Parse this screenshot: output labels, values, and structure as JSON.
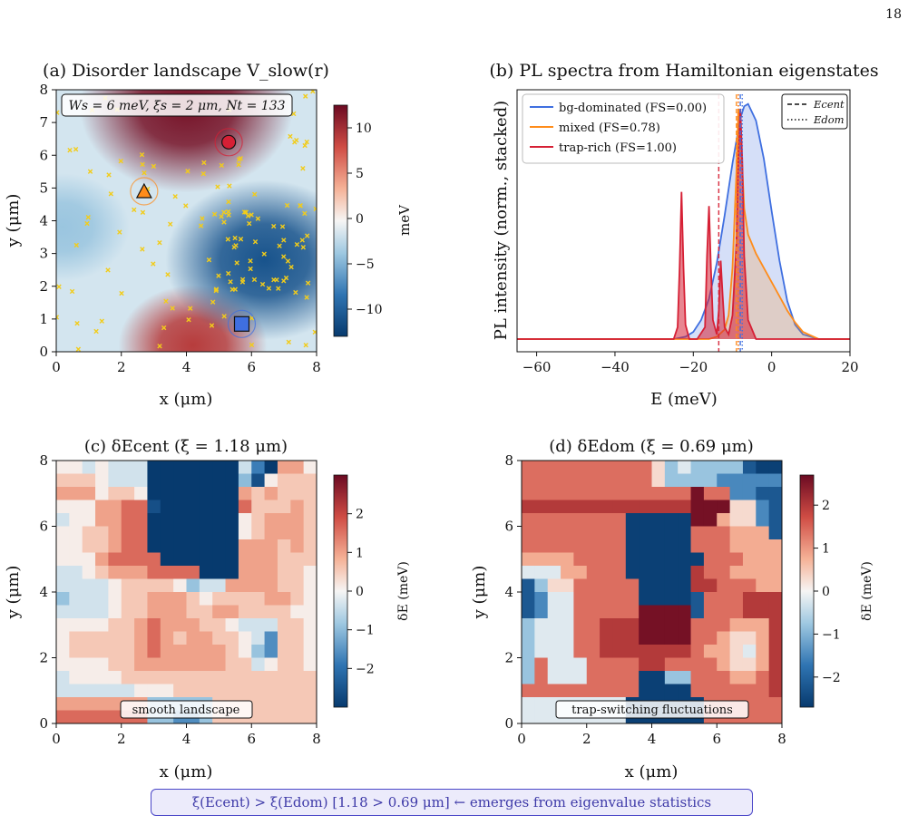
{
  "page_number": "18",
  "conclusion": "ξ(Ecent) > ξ(Edom)  [1.18 > 0.69 μm]  ←  emerges from eigenvalue statistics",
  "chart_data": [
    {
      "id": "a",
      "type": "heatmap",
      "title": "(a) Disorder landscape V_slow(r)",
      "xlabel": "x (μm)",
      "ylabel": "y (μm)",
      "xlim": [
        0,
        8
      ],
      "ylim": [
        0,
        8
      ],
      "xticks": [
        "0",
        "2",
        "4",
        "6",
        "8"
      ],
      "yticks": [
        "0",
        "1",
        "2",
        "3",
        "4",
        "5",
        "6",
        "7",
        "8"
      ],
      "colorbar": {
        "label": "meV",
        "range": [
          -13,
          12.5
        ],
        "ticks": [
          "10",
          "5",
          "0",
          "−5",
          "−10"
        ],
        "tick_values": [
          10,
          5,
          0,
          -5,
          -10
        ],
        "colormap": "RdBu_r"
      },
      "info_box": "Ws = 6 meV, ξs = 2 μm, Nt = 133",
      "landscape_features": [
        {
          "kind": "maximum",
          "x": 4.0,
          "y": 7.5,
          "value_meV": 12
        },
        {
          "kind": "maximum",
          "x": 4.2,
          "y": 0.2,
          "value_meV": 9
        },
        {
          "kind": "minimum",
          "x": 6.4,
          "y": 2.8,
          "value_meV": -11
        },
        {
          "kind": "minimum",
          "x": 0.2,
          "y": 3.8,
          "value_meV": -4
        }
      ],
      "trap_count": 133,
      "markers": [
        {
          "shape": "circle",
          "x": 5.3,
          "y": 6.4,
          "color": "#d62035",
          "name": "trap-rich"
        },
        {
          "shape": "triangle",
          "x": 2.7,
          "y": 4.9,
          "color": "#ff8c1a",
          "name": "mixed"
        },
        {
          "shape": "square",
          "x": 5.7,
          "y": 0.85,
          "color": "#3f6fe0",
          "name": "bg-dominated"
        }
      ]
    },
    {
      "id": "b",
      "type": "line",
      "title": "(b) PL spectra from Hamiltonian eigenstates",
      "xlabel": "E (meV)",
      "ylabel": "PL intensity (norm., stacked)",
      "xlim": [
        -65,
        20
      ],
      "ylim": [
        0,
        1.08
      ],
      "xticks": [
        "−60",
        "−40",
        "−20",
        "0",
        "20"
      ],
      "xtick_values": [
        -60,
        -40,
        -20,
        0,
        20
      ],
      "legend": {
        "placement": "top-left",
        "entries": [
          "bg-dominated (FS=0.00)",
          "mixed (FS=0.78)",
          "trap-rich (FS=1.00)"
        ]
      },
      "legend2": {
        "placement": "top-right",
        "entries": [
          "Ecent",
          "Edom"
        ]
      },
      "series": [
        {
          "name": "bg-dominated (FS=0.00)",
          "color": "#3f6fe0",
          "x": [
            -65,
            -25,
            -22,
            -20,
            -18,
            -16,
            -14,
            -12,
            -10,
            -8,
            -7,
            -6,
            -4,
            -2,
            0,
            2,
            4,
            6,
            8,
            12,
            20
          ],
          "y": [
            0,
            0,
            0.01,
            0.03,
            0.08,
            0.17,
            0.32,
            0.52,
            0.74,
            0.93,
            0.98,
            0.99,
            0.92,
            0.76,
            0.54,
            0.33,
            0.16,
            0.06,
            0.02,
            0,
            0
          ]
        },
        {
          "name": "mixed (FS=0.78)",
          "color": "#ff8c1a",
          "x": [
            -65,
            -16,
            -14,
            -12,
            -11,
            -10,
            -9,
            -8.5,
            -8,
            -7.5,
            -7,
            -6,
            -4,
            -2,
            0,
            2,
            4,
            6,
            8,
            12,
            20
          ],
          "y": [
            0,
            0,
            0.01,
            0.04,
            0.1,
            0.3,
            0.7,
            0.97,
            0.9,
            0.72,
            0.55,
            0.44,
            0.36,
            0.3,
            0.24,
            0.18,
            0.12,
            0.07,
            0.03,
            0,
            0
          ]
        },
        {
          "name": "trap-rich (FS=1.00)",
          "color": "#d62035",
          "x": [
            -65,
            -25,
            -24,
            -23.5,
            -23,
            -22.5,
            -22,
            -21,
            -19,
            -17,
            -16.5,
            -16,
            -15.5,
            -15,
            -14,
            -13.5,
            -13,
            -12.5,
            -12,
            -11,
            -10,
            -9,
            -8.5,
            -8,
            -7.5,
            -7,
            -6,
            -4,
            20
          ],
          "y": [
            0,
            0,
            0.05,
            0.3,
            0.62,
            0.3,
            0.06,
            0,
            0,
            0.05,
            0.35,
            0.56,
            0.3,
            0.08,
            0.02,
            0.12,
            0.33,
            0.18,
            0.05,
            0.02,
            0.1,
            0.4,
            0.75,
            0.97,
            0.75,
            0.35,
            0.08,
            0,
            0
          ]
        }
      ],
      "lines": [
        {
          "kind": "dashed",
          "label": "Ecent",
          "color": "#d62035",
          "x": -13.5
        },
        {
          "kind": "dashed",
          "label": "Ecent",
          "color": "#ff8c1a",
          "x": -9.0
        },
        {
          "kind": "dashed",
          "label": "Ecent",
          "color": "#3f6fe0",
          "x": -8.0
        },
        {
          "kind": "dotted",
          "label": "Edom",
          "color": "#d62035",
          "x": -8.5
        },
        {
          "kind": "dotted",
          "label": "Edom",
          "color": "#ff8c1a",
          "x": -8.5
        },
        {
          "kind": "dotted",
          "label": "Edom",
          "color": "#3f6fe0",
          "x": -7.5
        }
      ]
    },
    {
      "id": "c",
      "type": "heatmap",
      "title": "(c) δEcent  (ξ = 1.18 μm)",
      "xlabel": "x (μm)",
      "ylabel": "y (μm)",
      "xlim": [
        0,
        8
      ],
      "ylim": [
        0,
        8
      ],
      "xticks": [
        "0",
        "2",
        "4",
        "6",
        "8"
      ],
      "yticks": [
        "0",
        "2",
        "4",
        "6",
        "8"
      ],
      "annotation": "smooth landscape",
      "colorbar": {
        "label": "δE (meV)",
        "range": [
          -3,
          3
        ],
        "ticks": [
          "2",
          "1",
          "0",
          "−1",
          "−2"
        ],
        "tick_values": [
          2,
          1,
          0,
          -1,
          -2
        ],
        "colormap": "RdBu_r"
      },
      "grid_size": [
        20,
        20
      ],
      "rows_top_to_bottom": [
        "44343338888888ca8664",
        "55543338888888b94555",
        "66645548888888656555",
        "44466779888888755565",
        "34466778888888456665",
        "44556778888888456665",
        "44556778888888666565",
        "44467777888888666555",
        "33456667777888666554",
        "33334555542336666554",
        "23334556665455556654",
        "33334556665566555544",
        "44445567666554333554",
        "45555567656655431554",
        "45555567666665421554",
        "44445566666665534554",
        "34444555555555555555",
        "33333344455555555555",
        "66666662222255555555",
        "77777772211255555555"
      ],
      "level_values_meV": [
        -3,
        -2.2,
        -1.4,
        -0.8,
        -0.3,
        0.2,
        0.7,
        1.2,
        -3,
        -3,
        -3
      ]
    },
    {
      "id": "d",
      "type": "heatmap",
      "title": "(d) δEdom  (ξ = 0.69 μm)",
      "xlabel": "x (μm)",
      "ylabel": "y (μm)",
      "xlim": [
        0,
        8
      ],
      "ylim": [
        0,
        8
      ],
      "xticks": [
        "0",
        "2",
        "4",
        "6",
        "8"
      ],
      "yticks": [
        "0",
        "2",
        "4",
        "6",
        "8"
      ],
      "annotation": "trap-switching fluctuations",
      "colorbar": {
        "label": "δE (meV)",
        "range": [
          -2.7,
          2.7
        ],
        "ticks": [
          "2",
          "1",
          "0",
          "−1",
          "−2"
        ],
        "tick_values": [
          2,
          1,
          0,
          -1,
          -2
        ],
        "colormap": "RdBu_r"
      },
      "grid_size": [
        20,
        20
      ],
      "rows_top_to_bottom": [
        "77777777775343333100",
        "77777777775333322222",
        "77777777777779772211",
        "88888888888889995521",
        "77777777000009965521",
        "77777777000007776661",
        "77777777000007776666",
        "66667777000000777666",
        "44466777000008776666",
        "13557777700008877766",
        "12447777700001777888",
        "12447777799991777888",
        "34447788899997776668",
        "34447788899997765568",
        "34447788888887665468",
        "37444777788777765568",
        "37444777700337776678",
        "77777777700007777778",
        "44444444000000777777",
        "44444444000000777777"
      ],
      "level_values_meV": [
        -2.6,
        -2.2,
        -1.5,
        -0.8,
        -0.2,
        0.3,
        0.8,
        1.4,
        2.0,
        2.6
      ]
    }
  ]
}
